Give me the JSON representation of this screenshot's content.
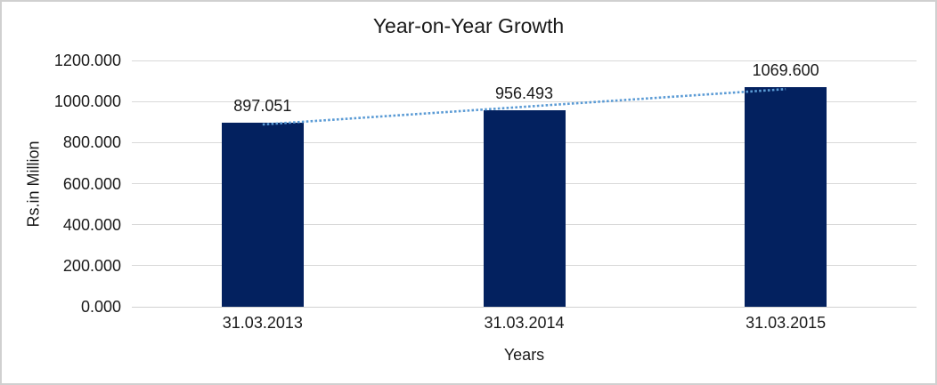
{
  "chart_data": {
    "type": "bar",
    "title": "Year-on-Year Growth",
    "categories": [
      "31.03.2013",
      "31.03.2014",
      "31.03.2015"
    ],
    "values": [
      897.051,
      956.493,
      1069.6
    ],
    "value_labels": [
      "897.051",
      "956.493",
      "1069.600"
    ],
    "xlabel": "Years",
    "ylabel": "Rs.in Million",
    "ylim": [
      0,
      1200
    ],
    "ytick_interval": 200,
    "ytick_labels": [
      "0.000",
      "200.000",
      "400.000",
      "600.000",
      "800.000",
      "1000.000",
      "1200.000"
    ],
    "grid": "horizontal",
    "legend": "none",
    "trendline": {
      "type": "linear",
      "style": "dotted"
    }
  },
  "colors": {
    "bar": "#03215F",
    "trendline": "#5B9BD5",
    "gridline": "#D9D9D9",
    "axis_line": "#D2D2D2",
    "frame_border": "#D0D0D0",
    "text": "#1A1A1A",
    "background": "#FFFFFF"
  }
}
